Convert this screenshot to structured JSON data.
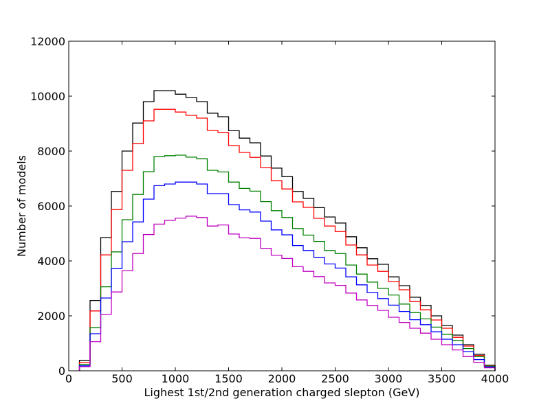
{
  "chart_data": {
    "type": "histogram",
    "title": "",
    "xlabel": "Lighest 1st/2nd generation charged slepton (GeV)",
    "ylabel": "Number of models",
    "xlim": [
      0,
      4000
    ],
    "ylim": [
      0,
      12000
    ],
    "xticks": [
      0,
      500,
      1000,
      1500,
      2000,
      2500,
      3000,
      3500,
      4000
    ],
    "yticks": [
      0,
      2000,
      4000,
      6000,
      8000,
      10000,
      12000
    ],
    "grid": false,
    "legend": "none",
    "bin_edges": [
      100,
      200,
      300,
      400,
      500,
      600,
      700,
      800,
      900,
      1000,
      1100,
      1200,
      1300,
      1400,
      1500,
      1600,
      1700,
      1800,
      1900,
      2000,
      2100,
      2200,
      2300,
      2400,
      2500,
      2600,
      2700,
      2800,
      2900,
      3000,
      3100,
      3200,
      3300,
      3400,
      3500,
      3600,
      3700,
      3800,
      3900,
      4000
    ],
    "series": [
      {
        "color": "#000000",
        "values": [
          380,
          2560,
          4850,
          6530,
          8000,
          9020,
          9800,
          10200,
          10200,
          10070,
          9950,
          9800,
          9380,
          9250,
          8740,
          8470,
          8300,
          7820,
          7380,
          7070,
          6530,
          6280,
          5940,
          5600,
          5380,
          4880,
          4480,
          4080,
          3880,
          3420,
          3100,
          2680,
          2380,
          2000,
          1650,
          1300,
          950,
          600,
          200
        ]
      },
      {
        "color": "#ff0000",
        "values": [
          300,
          2180,
          4220,
          5870,
          7300,
          8270,
          9100,
          9520,
          9520,
          9420,
          9300,
          9200,
          8750,
          8680,
          8200,
          7950,
          7770,
          7400,
          6920,
          6620,
          6150,
          5950,
          5550,
          5270,
          5070,
          4580,
          4220,
          3850,
          3620,
          3250,
          2950,
          2520,
          2220,
          1850,
          1550,
          1220,
          900,
          560,
          180
        ]
      },
      {
        "color": "#008000",
        "values": [
          230,
          1570,
          3060,
          4330,
          5500,
          6420,
          7250,
          7800,
          7830,
          7850,
          7780,
          7720,
          7300,
          7240,
          6870,
          6640,
          6540,
          6160,
          5830,
          5580,
          5180,
          4940,
          4710,
          4380,
          4270,
          3850,
          3520,
          3230,
          3000,
          2760,
          2430,
          2120,
          1890,
          1590,
          1330,
          1110,
          810,
          520,
          170
        ]
      },
      {
        "color": "#0000ff",
        "values": [
          180,
          1350,
          2650,
          3720,
          4700,
          5420,
          6250,
          6740,
          6800,
          6870,
          6870,
          6800,
          6450,
          6450,
          6050,
          5860,
          5780,
          5450,
          5130,
          4950,
          4560,
          4380,
          4130,
          3890,
          3740,
          3420,
          3130,
          2850,
          2630,
          2390,
          2160,
          1860,
          1680,
          1420,
          1150,
          950,
          700,
          410,
          140
        ]
      },
      {
        "color": "#bf00bf",
        "values": [
          150,
          1060,
          2060,
          2870,
          3640,
          4270,
          4960,
          5340,
          5480,
          5560,
          5630,
          5580,
          5270,
          5310,
          4980,
          4840,
          4820,
          4460,
          4210,
          4090,
          3790,
          3620,
          3430,
          3200,
          3110,
          2830,
          2580,
          2380,
          2200,
          1950,
          1760,
          1550,
          1370,
          1150,
          950,
          760,
          520,
          310,
          110
        ]
      }
    ]
  }
}
